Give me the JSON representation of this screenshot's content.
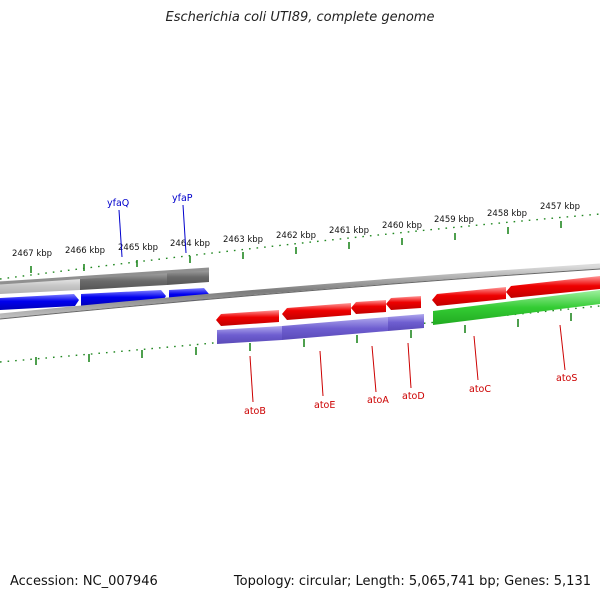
{
  "title": "Escherichia coli UTI89, complete genome",
  "footer": {
    "accession": "Accession: NC_007946",
    "summary": "Topology: circular; Length: 5,065,741 bp; Genes: 5,131"
  },
  "colors": {
    "backbone": "#8a8a8a",
    "forward_cds": "#1010ee",
    "reverse_cds": "#ee1010",
    "gray_feature": "#707070",
    "purple_feature": "#7060cc",
    "green_feature": "#33cc33",
    "ticks": "#228822",
    "blue_label": "#0000cc",
    "red_label": "#cc0000"
  },
  "scale_labels": [
    "2467 kbp",
    "2466 kbp",
    "2465 kbp",
    "2464 kbp",
    "2463 kbp",
    "2462 kbp",
    "2461 kbp",
    "2460 kbp",
    "2459 kbp",
    "2458 kbp",
    "2457 kbp"
  ],
  "genes_top": [
    "yfaQ",
    "yfaP"
  ],
  "genes_bottom": [
    "atoB",
    "atoE",
    "atoA",
    "atoD",
    "atoC",
    "atoS"
  ]
}
